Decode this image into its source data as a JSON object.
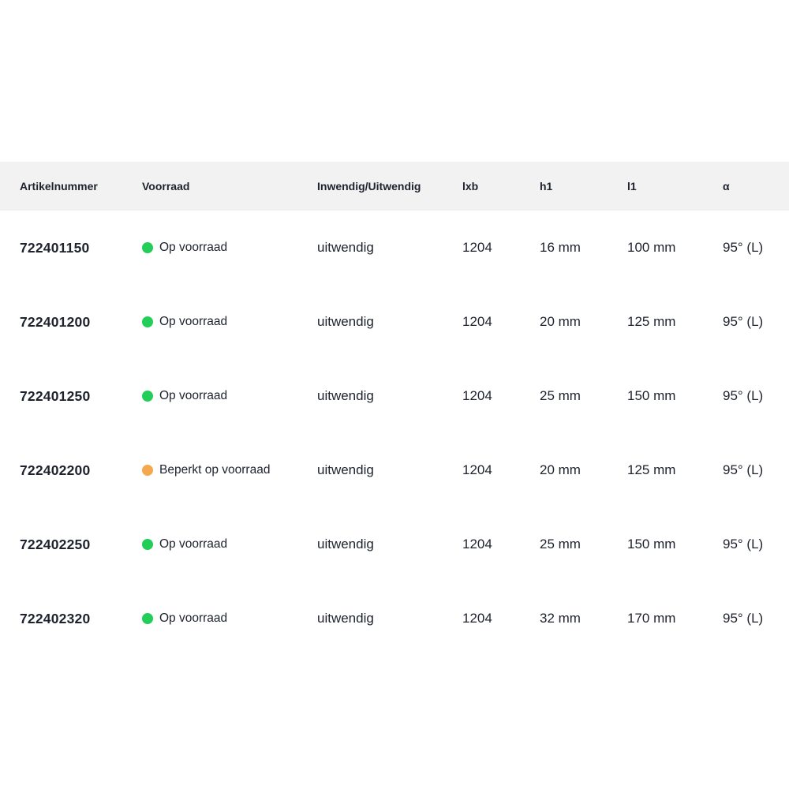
{
  "table": {
    "columns": {
      "artikelnummer": "Artikelnummer",
      "voorraad": "Voorraad",
      "inwendig_uitwendig": "Inwendig/Uitwendig",
      "lxb": "lxb",
      "h1": "h1",
      "l1": "l1",
      "alpha": "α"
    },
    "status_colors": {
      "in_stock": "#22ce58",
      "limited": "#f5a94f"
    },
    "rows": [
      {
        "artikelnummer": "722401150",
        "voorraad": "Op voorraad",
        "status": "in_stock",
        "inwendig_uitwendig": "uitwendig",
        "lxb": "1204",
        "h1": "16 mm",
        "l1": "100 mm",
        "alpha": "95° (L)"
      },
      {
        "artikelnummer": "722401200",
        "voorraad": "Op voorraad",
        "status": "in_stock",
        "inwendig_uitwendig": "uitwendig",
        "lxb": "1204",
        "h1": "20 mm",
        "l1": "125 mm",
        "alpha": "95° (L)"
      },
      {
        "artikelnummer": "722401250",
        "voorraad": "Op voorraad",
        "status": "in_stock",
        "inwendig_uitwendig": "uitwendig",
        "lxb": "1204",
        "h1": "25 mm",
        "l1": "150 mm",
        "alpha": "95° (L)"
      },
      {
        "artikelnummer": "722402200",
        "voorraad": "Beperkt op voorraad",
        "status": "limited",
        "inwendig_uitwendig": "uitwendig",
        "lxb": "1204",
        "h1": "20 mm",
        "l1": "125 mm",
        "alpha": "95° (L)"
      },
      {
        "artikelnummer": "722402250",
        "voorraad": "Op voorraad",
        "status": "in_stock",
        "inwendig_uitwendig": "uitwendig",
        "lxb": "1204",
        "h1": "25 mm",
        "l1": "150 mm",
        "alpha": "95° (L)"
      },
      {
        "artikelnummer": "722402320",
        "voorraad": "Op voorraad",
        "status": "in_stock",
        "inwendig_uitwendig": "uitwendig",
        "lxb": "1204",
        "h1": "32 mm",
        "l1": "170 mm",
        "alpha": "95° (L)"
      }
    ]
  }
}
